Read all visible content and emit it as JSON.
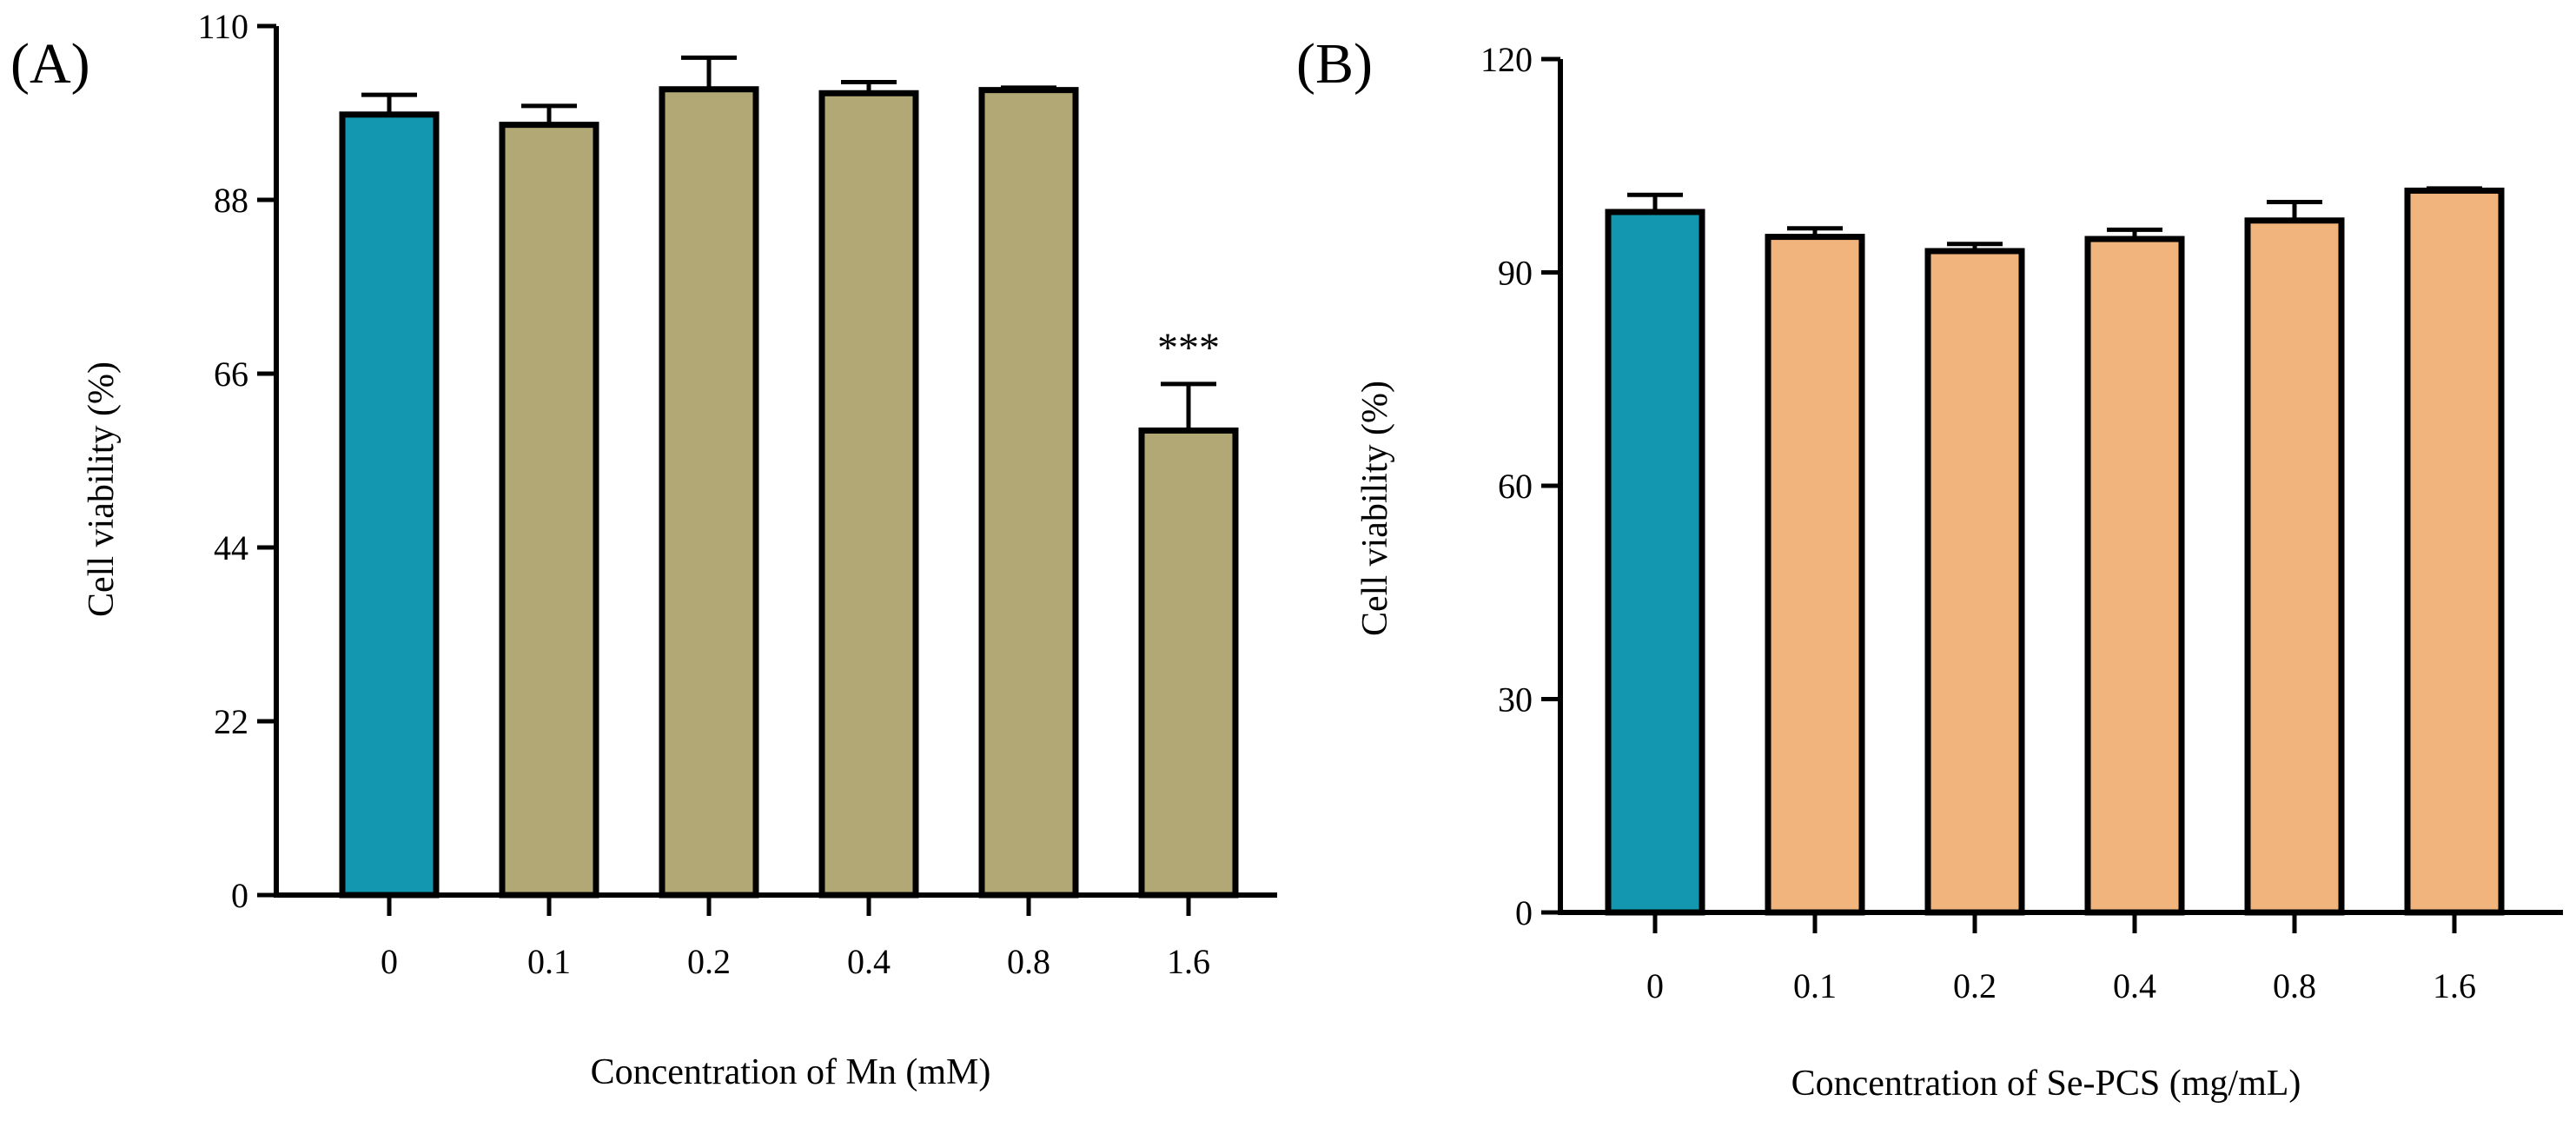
{
  "chart_data": [
    {
      "type": "bar",
      "panel_label": "(A)",
      "categories": [
        "0",
        "0.1",
        "0.2",
        "0.4",
        "0.8",
        "1.6"
      ],
      "values": [
        98.8,
        97.5,
        102.0,
        101.5,
        101.9,
        58.8
      ],
      "errors": [
        2.5,
        2.4,
        4.0,
        1.4,
        0.3,
        5.9
      ],
      "colors": [
        "#1396b0",
        "#b2a875",
        "#b2a875",
        "#b2a875",
        "#b2a875",
        "#b2a875"
      ],
      "annotations": [
        "",
        "",
        "",
        "",
        "",
        "***"
      ],
      "xlabel": "Concentration of Mn (mM)",
      "ylabel": "Cell viability (%)",
      "ylim": [
        0,
        110
      ],
      "yticks": [
        0,
        22,
        44,
        66,
        88,
        110
      ]
    },
    {
      "type": "bar",
      "panel_label": "(B)",
      "categories": [
        "0",
        "0.1",
        "0.2",
        "0.4",
        "0.8",
        "1.6"
      ],
      "values": [
        98.5,
        95.0,
        93.0,
        94.7,
        97.3,
        101.5
      ],
      "errors": [
        2.4,
        1.2,
        1.0,
        1.3,
        2.6,
        0.3
      ],
      "colors": [
        "#1396b0",
        "#f0b47c",
        "#f0b47c",
        "#f0b47c",
        "#f0b47c",
        "#f0b47c"
      ],
      "annotations": [
        "",
        "",
        "",
        "",
        "",
        ""
      ],
      "xlabel": "Concentration of Se-PCS (mg/mL)",
      "ylabel": "Cell viability (%)",
      "ylim": [
        0,
        120
      ],
      "yticks": [
        0,
        30,
        60,
        90,
        120
      ]
    }
  ]
}
